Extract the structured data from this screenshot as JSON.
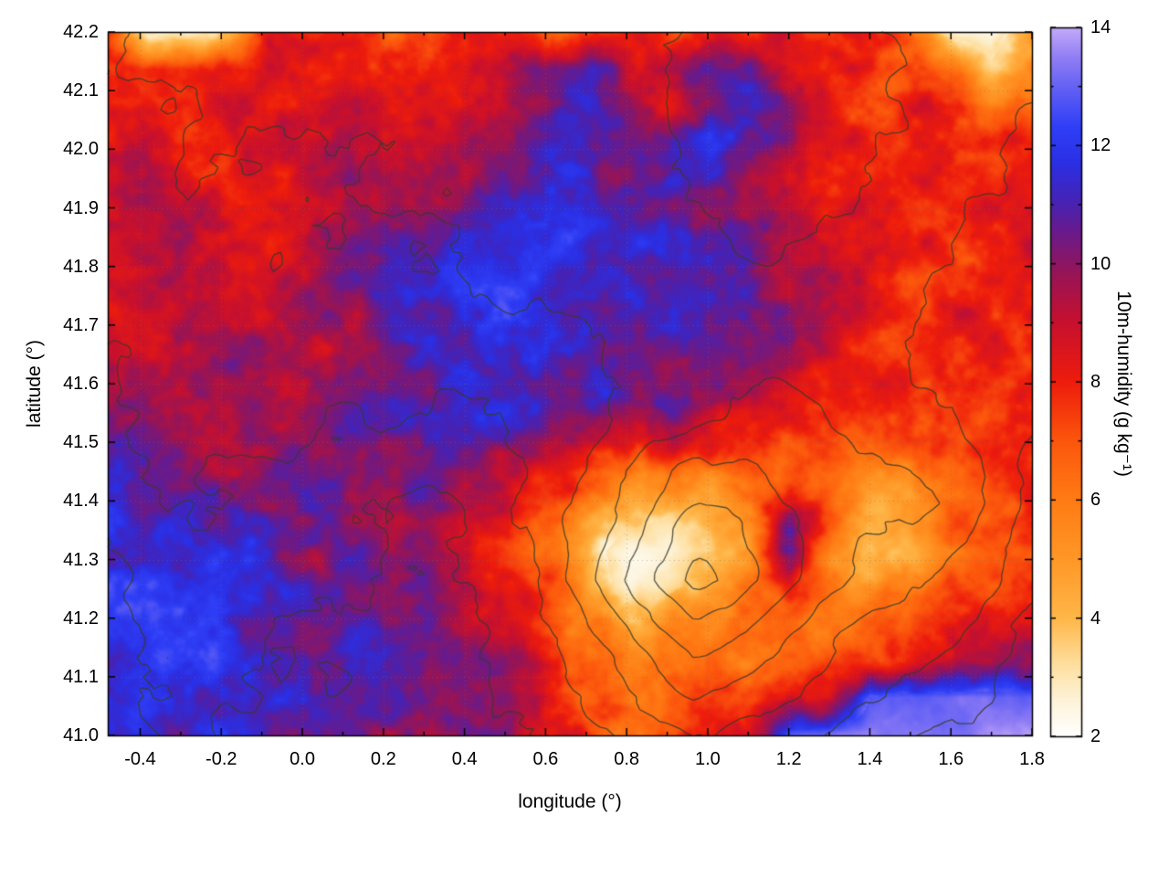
{
  "chart_data": {
    "type": "heatmap",
    "title": "",
    "xlabel": "longitude (°)",
    "ylabel": "latitude (°)",
    "x_range": [
      -0.48,
      1.8
    ],
    "y_range": [
      41.0,
      42.2
    ],
    "grid_lines": "dotted, at major ticks",
    "x_ticks": [
      "-0.4",
      "-0.2",
      "0.0",
      "0.2",
      "0.4",
      "0.6",
      "0.8",
      "1.0",
      "1.2",
      "1.4",
      "1.6",
      "1.8"
    ],
    "x_tick_values": [
      -0.4,
      -0.2,
      0.0,
      0.2,
      0.4,
      0.6,
      0.8,
      1.0,
      1.2,
      1.4,
      1.6,
      1.8
    ],
    "x_minor_ticks": [
      -0.3,
      -0.1,
      0.1,
      0.3,
      0.5,
      0.7,
      0.9,
      1.1,
      1.3,
      1.5,
      1.7
    ],
    "y_ticks": [
      "41.0",
      "41.1",
      "41.2",
      "41.3",
      "41.4",
      "41.5",
      "41.6",
      "41.7",
      "41.8",
      "41.9",
      "42.0",
      "42.1",
      "42.2"
    ],
    "y_tick_values": [
      41.0,
      41.1,
      41.2,
      41.3,
      41.4,
      41.5,
      41.6,
      41.7,
      41.8,
      41.9,
      42.0,
      42.1,
      42.2
    ],
    "colorbar": {
      "label": "10m-humidity (g kg⁻¹)",
      "min": 2,
      "max": 14,
      "tick_values": [
        2,
        4,
        6,
        8,
        10,
        12,
        14
      ],
      "tick_labels": [
        "2",
        "4",
        "6",
        "8",
        "10",
        "12",
        "14"
      ],
      "minor_ticks": [
        3,
        5,
        7,
        9,
        11,
        13
      ],
      "palette": [
        [
          2,
          "#ffffff"
        ],
        [
          2.6,
          "#fdf3d8"
        ],
        [
          3.2,
          "#fedfa0"
        ],
        [
          4,
          "#ffb648"
        ],
        [
          5,
          "#ff9726"
        ],
        [
          6,
          "#ff7b14"
        ],
        [
          7,
          "#fc560c"
        ],
        [
          8,
          "#ee1c0c"
        ],
        [
          9,
          "#c8102e"
        ],
        [
          9.8,
          "#991455"
        ],
        [
          10.5,
          "#6c1a88"
        ],
        [
          11.1,
          "#4423b8"
        ],
        [
          11.7,
          "#2b2fe4"
        ],
        [
          12.3,
          "#2e3ef6"
        ],
        [
          12.9,
          "#5c5cf4"
        ],
        [
          13.5,
          "#917ef4"
        ],
        [
          14,
          "#c3aaf9"
        ]
      ]
    },
    "grid": {
      "lon_min": -0.48,
      "lon_max": 1.8,
      "lat_min": 41.0,
      "lat_max": 42.2,
      "cols": 24,
      "rows": 20,
      "row_order": "top-to-bottom (lat 42.2 to 41.0)",
      "units": "g kg⁻¹",
      "humidity_g_per_kg": [
        [
          8,
          3,
          2.5,
          4,
          8,
          8,
          8,
          7,
          7,
          8,
          8,
          6,
          8,
          8,
          8,
          8,
          8,
          8.5,
          8,
          8,
          6,
          3,
          2.5,
          5
        ],
        [
          8,
          8,
          7.5,
          8,
          8.5,
          8,
          8,
          8.5,
          8,
          8.5,
          9,
          10.5,
          11,
          9,
          9.5,
          11,
          10.5,
          9,
          8,
          8,
          7.5,
          6,
          4,
          6
        ],
        [
          8.5,
          8,
          8,
          8.5,
          8,
          8.5,
          9,
          8,
          8.5,
          9,
          9.5,
          10,
          11,
          10.5,
          9,
          11,
          11,
          9.5,
          8,
          7.5,
          8,
          8,
          6,
          7
        ],
        [
          9,
          8.5,
          8,
          8,
          8.5,
          9,
          9,
          8.5,
          9,
          9.5,
          10,
          10.5,
          11,
          11,
          10.5,
          11,
          10.5,
          9,
          8.5,
          8,
          8,
          8.5,
          7.5,
          8
        ],
        [
          8.5,
          9,
          8.5,
          8,
          8.5,
          9,
          9.5,
          9,
          9.5,
          10,
          10.5,
          11,
          11,
          11,
          11,
          10.5,
          10,
          9,
          8.5,
          8,
          8,
          8.5,
          8,
          8
        ],
        [
          9,
          8.5,
          9,
          8.5,
          9,
          9,
          9.5,
          10,
          10.5,
          11,
          11.5,
          11.5,
          11.5,
          11,
          11,
          10.5,
          10,
          9.5,
          8.5,
          8,
          8,
          8,
          8.5,
          8
        ],
        [
          8.5,
          9,
          9,
          9,
          8.5,
          9,
          10,
          10.5,
          11,
          11.5,
          11.5,
          12,
          11.5,
          11.5,
          11,
          11,
          10,
          9.5,
          9,
          8.5,
          8,
          8,
          8,
          8.5
        ],
        [
          9,
          9.5,
          9,
          8.5,
          9,
          9.5,
          10,
          11,
          11.5,
          12,
          12,
          11.5,
          11.5,
          11.5,
          11,
          11,
          10.5,
          9.5,
          9,
          8.5,
          8,
          8,
          8,
          8
        ],
        [
          9,
          9,
          9.5,
          9,
          9,
          9.5,
          10,
          11,
          11.5,
          11.5,
          12,
          11.5,
          11.5,
          11,
          11,
          10.5,
          10,
          9.5,
          8.5,
          8,
          7.5,
          8,
          8,
          7.5
        ],
        [
          9.5,
          9,
          9,
          9.5,
          9.5,
          10,
          10,
          10.5,
          11,
          11.5,
          11.5,
          11.5,
          11,
          11,
          10.5,
          10.5,
          10,
          9,
          8.5,
          8,
          7.5,
          7.5,
          8,
          7.5
        ],
        [
          10,
          9.5,
          9,
          9,
          9.5,
          10,
          10,
          10.5,
          11,
          11,
          11.5,
          11,
          11,
          10.5,
          10.5,
          10,
          9.5,
          8.5,
          8,
          7.5,
          7.5,
          7.5,
          7.5,
          8
        ],
        [
          10.5,
          10,
          9.5,
          9.5,
          10,
          10,
          10.5,
          10.5,
          11,
          11,
          10.5,
          10,
          9.5,
          9,
          8.5,
          8,
          8,
          7.5,
          7.5,
          7,
          7.5,
          7.5,
          7.5,
          7.5
        ],
        [
          11,
          11,
          10.5,
          10,
          10.5,
          10.5,
          10.5,
          10.5,
          10.5,
          10,
          9,
          8,
          7,
          6,
          5.5,
          5.5,
          6.5,
          7,
          7,
          5.5,
          5,
          7,
          7.5,
          7
        ],
        [
          11.5,
          11,
          11,
          10.5,
          10.5,
          10.5,
          10.5,
          10,
          10,
          9.5,
          8.5,
          7.5,
          5.5,
          4,
          3.5,
          4.5,
          6,
          9.5,
          7,
          4.5,
          4,
          6.5,
          7,
          7.5
        ],
        [
          11.5,
          12,
          11.5,
          11,
          11,
          10.5,
          10.5,
          10,
          9.5,
          9,
          8,
          6.5,
          4,
          2.5,
          2.5,
          3.5,
          5.5,
          10.5,
          6,
          4,
          4.5,
          6.5,
          7.5,
          7.5
        ],
        [
          12,
          12,
          11.5,
          11.5,
          11,
          11,
          10.5,
          10.5,
          10,
          9.5,
          8.5,
          7,
          4.5,
          2.5,
          3,
          4.5,
          6,
          8,
          6,
          5,
          5.5,
          7,
          7.5,
          8
        ],
        [
          11.5,
          12,
          12,
          11.5,
          11,
          11,
          11,
          10.5,
          10,
          9.5,
          9,
          7.5,
          6,
          4.5,
          5,
          6,
          6,
          6.5,
          6.5,
          6.5,
          7,
          7.5,
          8,
          8.5
        ],
        [
          11.5,
          11.5,
          12,
          11.5,
          11.5,
          11,
          11,
          10.5,
          10.5,
          10,
          9.5,
          8,
          6.5,
          6,
          6.5,
          6.5,
          6.5,
          7,
          7,
          7.5,
          8,
          8.5,
          9,
          10.5
        ],
        [
          11.5,
          11.5,
          11.5,
          11.5,
          11,
          11,
          10.5,
          10.5,
          10,
          10,
          9.5,
          8.5,
          7,
          6.5,
          7,
          7.5,
          7.5,
          8,
          8.5,
          12.5,
          13,
          13,
          13,
          13
        ],
        [
          11.5,
          11,
          11.5,
          11,
          11,
          10.5,
          10.5,
          10,
          10.5,
          10,
          9.5,
          9,
          7.5,
          7,
          7.5,
          8,
          8.5,
          13,
          13.2,
          13.3,
          13.4,
          13.4,
          13.5,
          13.5
        ]
      ]
    },
    "contours": {
      "style": "dark terrain contour lines overlaid on heatmap",
      "levels": [
        150,
        300,
        500,
        700,
        900,
        1100,
        1300
      ],
      "cols": 12,
      "rows": 10,
      "row_order": "top-to-bottom (lat 42.2 to 41.0)",
      "elevation_arbitrary_units": [
        [
          500,
          550,
          500,
          600,
          650,
          600,
          650,
          700,
          750,
          700,
          650,
          600
        ],
        [
          450,
          500,
          550,
          550,
          600,
          650,
          600,
          750,
          800,
          750,
          600,
          500
        ],
        [
          400,
          500,
          450,
          500,
          550,
          600,
          650,
          700,
          800,
          700,
          550,
          450
        ],
        [
          350,
          450,
          500,
          450,
          500,
          550,
          600,
          650,
          700,
          600,
          500,
          400
        ],
        [
          300,
          400,
          450,
          400,
          350,
          400,
          500,
          600,
          650,
          550,
          450,
          350
        ],
        [
          250,
          350,
          400,
          300,
          250,
          350,
          500,
          700,
          800,
          600,
          500,
          300
        ],
        [
          200,
          300,
          250,
          200,
          150,
          300,
          700,
          1100,
          900,
          800,
          700,
          250
        ],
        [
          150,
          250,
          200,
          150,
          100,
          250,
          800,
          1400,
          1000,
          600,
          500,
          200
        ],
        [
          100,
          200,
          150,
          100,
          100,
          200,
          500,
          900,
          700,
          400,
          300,
          100
        ],
        [
          100,
          150,
          100,
          100,
          80,
          150,
          300,
          500,
          400,
          200,
          100,
          50
        ]
      ]
    }
  }
}
